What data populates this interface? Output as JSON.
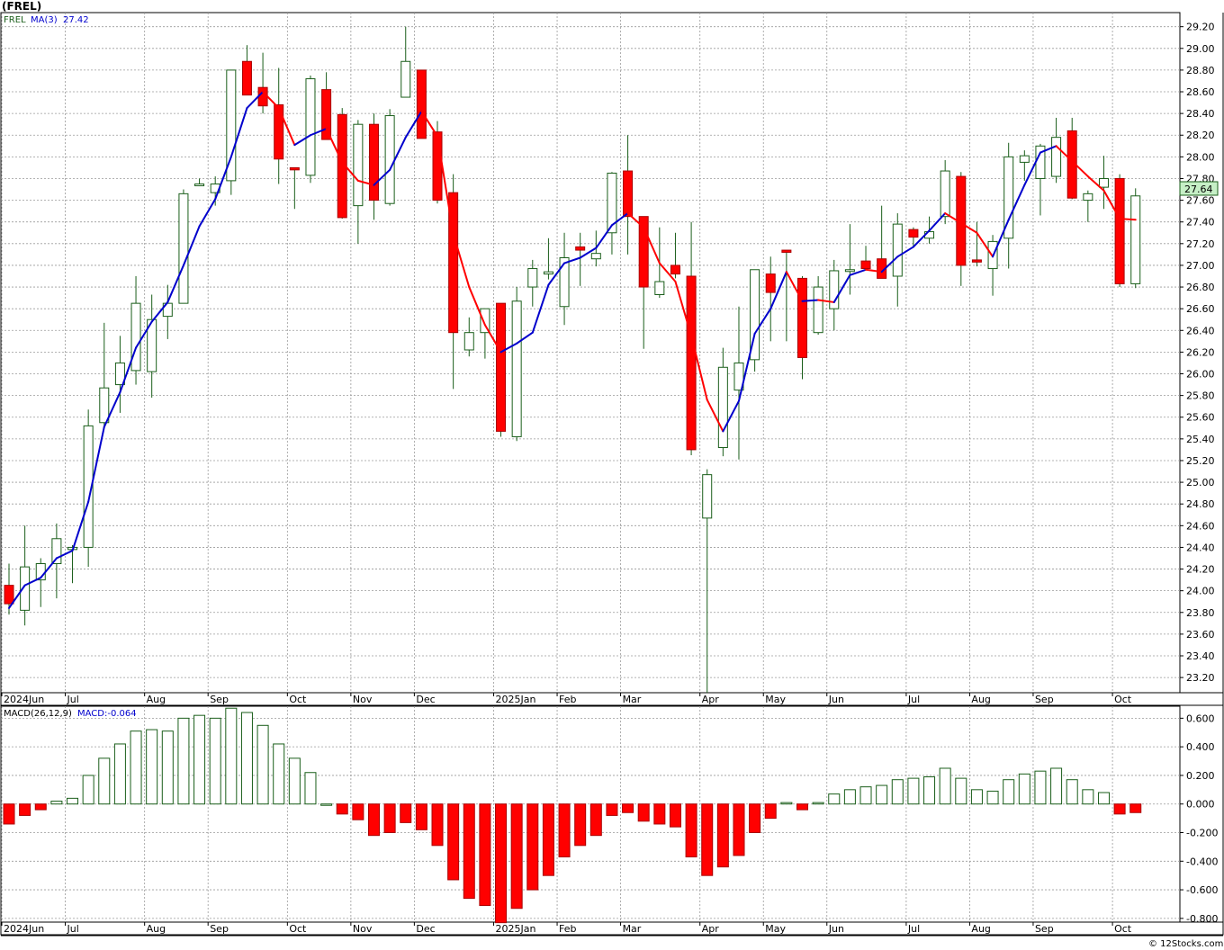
{
  "header": {
    "symbol": "(FREL)",
    "legend_symbol": "FREL",
    "ma_label": "MA(3)",
    "ma_value": "27.42",
    "last_price_badge": "27.64",
    "watermark": "© 12Stocks.com"
  },
  "colors": {
    "up": "#1a5e1a",
    "down": "#ff0000",
    "ma_up": "#0000cc",
    "ma_down": "#ff0000",
    "grid": "#9a9a9a",
    "badge_bg": "#c6efc6",
    "ma_label": "#0000cc"
  },
  "macd_header": {
    "label": "MACD(26,12,9)",
    "value_label": "MACD:-0.064"
  },
  "chart_data": [
    {
      "type": "candlestick",
      "title": "(FREL)",
      "interval": "weekly",
      "x_labels": [
        {
          "week": 0,
          "text": "2024Jun"
        },
        {
          "week": 4,
          "text": "Jul"
        },
        {
          "week": 9,
          "text": "Aug"
        },
        {
          "week": 13,
          "text": "Sep"
        },
        {
          "week": 18,
          "text": "Oct"
        },
        {
          "week": 22,
          "text": "Nov"
        },
        {
          "week": 26,
          "text": "Dec"
        },
        {
          "week": 31,
          "text": "2025Jan"
        },
        {
          "week": 35,
          "text": "Feb"
        },
        {
          "week": 39,
          "text": "Mar"
        },
        {
          "week": 44,
          "text": "Apr"
        },
        {
          "week": 48,
          "text": "May"
        },
        {
          "week": 52,
          "text": "Jun"
        },
        {
          "week": 57,
          "text": "Jul"
        },
        {
          "week": 61,
          "text": "Aug"
        },
        {
          "week": 65,
          "text": "Sep"
        },
        {
          "week": 70,
          "text": "Oct"
        }
      ],
      "y_ticks": [
        "29.20",
        "29.00",
        "28.80",
        "28.60",
        "28.40",
        "28.20",
        "28.00",
        "27.80",
        "27.60",
        "27.40",
        "27.20",
        "27.00",
        "26.80",
        "26.60",
        "26.40",
        "26.20",
        "26.00",
        "25.80",
        "25.60",
        "25.40",
        "25.20",
        "25.00",
        "24.80",
        "24.60",
        "24.40",
        "24.20",
        "24.00",
        "23.80",
        "23.60",
        "23.40",
        "23.20"
      ],
      "ylim": [
        23.06,
        29.33
      ],
      "candles": [
        {
          "o": 24.05,
          "h": 24.25,
          "l": 23.78,
          "c": 23.88
        },
        {
          "o": 23.82,
          "h": 24.6,
          "l": 23.68,
          "c": 24.22
        },
        {
          "o": 24.1,
          "h": 24.3,
          "l": 23.85,
          "c": 24.25
        },
        {
          "o": 24.25,
          "h": 24.62,
          "l": 23.93,
          "c": 24.48
        },
        {
          "o": 24.38,
          "h": 24.42,
          "l": 24.07,
          "c": 24.4
        },
        {
          "o": 24.4,
          "h": 25.67,
          "l": 24.22,
          "c": 25.52
        },
        {
          "o": 25.55,
          "h": 26.47,
          "l": 25.5,
          "c": 25.87
        },
        {
          "o": 25.9,
          "h": 26.35,
          "l": 25.64,
          "c": 26.1
        },
        {
          "o": 26.03,
          "h": 26.9,
          "l": 25.9,
          "c": 26.65
        },
        {
          "o": 26.02,
          "h": 26.73,
          "l": 25.78,
          "c": 26.5
        },
        {
          "o": 26.53,
          "h": 26.82,
          "l": 26.32,
          "c": 26.65
        },
        {
          "o": 26.65,
          "h": 27.7,
          "l": 26.65,
          "c": 27.66
        },
        {
          "o": 27.75,
          "h": 27.8,
          "l": 27.73,
          "c": 27.75
        },
        {
          "o": 27.67,
          "h": 27.82,
          "l": 27.55,
          "c": 27.75
        },
        {
          "o": 27.78,
          "h": 28.8,
          "l": 27.65,
          "c": 28.8
        },
        {
          "o": 28.88,
          "h": 29.03,
          "l": 28.58,
          "c": 28.57
        },
        {
          "o": 28.64,
          "h": 28.96,
          "l": 28.4,
          "c": 28.47
        },
        {
          "o": 28.48,
          "h": 28.82,
          "l": 27.75,
          "c": 27.98
        },
        {
          "o": 27.9,
          "h": 27.9,
          "l": 27.52,
          "c": 27.88
        },
        {
          "o": 27.83,
          "h": 28.75,
          "l": 27.76,
          "c": 28.72
        },
        {
          "o": 28.62,
          "h": 28.78,
          "l": 28.17,
          "c": 28.16
        },
        {
          "o": 28.39,
          "h": 28.45,
          "l": 27.43,
          "c": 27.44
        },
        {
          "o": 27.55,
          "h": 28.34,
          "l": 27.2,
          "c": 28.3
        },
        {
          "o": 28.3,
          "h": 28.4,
          "l": 27.42,
          "c": 27.6
        },
        {
          "o": 27.57,
          "h": 28.44,
          "l": 27.55,
          "c": 28.38
        },
        {
          "o": 28.55,
          "h": 29.2,
          "l": 28.55,
          "c": 28.88
        },
        {
          "o": 28.8,
          "h": 28.8,
          "l": 28.17,
          "c": 28.17
        },
        {
          "o": 28.23,
          "h": 28.33,
          "l": 27.57,
          "c": 27.6
        },
        {
          "o": 27.67,
          "h": 27.84,
          "l": 25.86,
          "c": 26.38
        },
        {
          "o": 26.22,
          "h": 26.52,
          "l": 26.16,
          "c": 26.38
        },
        {
          "o": 26.38,
          "h": 26.55,
          "l": 26.14,
          "c": 26.6
        },
        {
          "o": 26.65,
          "h": 26.65,
          "l": 25.42,
          "c": 25.47
        },
        {
          "o": 25.42,
          "h": 26.8,
          "l": 25.38,
          "c": 26.67
        },
        {
          "o": 26.8,
          "h": 27.05,
          "l": 26.62,
          "c": 26.97
        },
        {
          "o": 26.92,
          "h": 27.25,
          "l": 26.87,
          "c": 26.94
        },
        {
          "o": 26.62,
          "h": 27.3,
          "l": 26.45,
          "c": 27.07
        },
        {
          "o": 27.17,
          "h": 27.3,
          "l": 26.81,
          "c": 27.14
        },
        {
          "o": 27.06,
          "h": 27.32,
          "l": 26.99,
          "c": 27.11
        },
        {
          "o": 27.3,
          "h": 27.86,
          "l": 27.1,
          "c": 27.85
        },
        {
          "o": 27.87,
          "h": 28.2,
          "l": 27.1,
          "c": 27.45
        },
        {
          "o": 27.45,
          "h": 27.45,
          "l": 26.23,
          "c": 26.8
        },
        {
          "o": 26.73,
          "h": 27.35,
          "l": 26.7,
          "c": 26.85
        },
        {
          "o": 27.0,
          "h": 27.3,
          "l": 26.88,
          "c": 26.92
        },
        {
          "o": 26.9,
          "h": 27.4,
          "l": 25.25,
          "c": 25.3
        },
        {
          "o": 24.67,
          "h": 25.12,
          "l": 23.06,
          "c": 25.07
        },
        {
          "o": 25.32,
          "h": 26.24,
          "l": 25.24,
          "c": 26.06
        },
        {
          "o": 25.85,
          "h": 26.62,
          "l": 25.21,
          "c": 26.1
        },
        {
          "o": 26.13,
          "h": 26.95,
          "l": 26.02,
          "c": 26.96
        },
        {
          "o": 26.92,
          "h": 27.08,
          "l": 26.3,
          "c": 26.75
        },
        {
          "o": 27.14,
          "h": 27.14,
          "l": 26.3,
          "c": 27.12
        },
        {
          "o": 26.88,
          "h": 26.9,
          "l": 25.95,
          "c": 26.15
        },
        {
          "o": 26.38,
          "h": 26.9,
          "l": 26.36,
          "c": 26.8
        },
        {
          "o": 26.6,
          "h": 27.05,
          "l": 26.4,
          "c": 26.95
        },
        {
          "o": 26.96,
          "h": 27.38,
          "l": 26.73,
          "c": 26.96
        },
        {
          "o": 27.04,
          "h": 27.18,
          "l": 26.98,
          "c": 26.97
        },
        {
          "o": 27.06,
          "h": 27.55,
          "l": 26.9,
          "c": 26.88
        },
        {
          "o": 26.9,
          "h": 27.48,
          "l": 26.62,
          "c": 27.38
        },
        {
          "o": 27.33,
          "h": 27.35,
          "l": 27.17,
          "c": 27.26
        },
        {
          "o": 27.25,
          "h": 27.45,
          "l": 27.2,
          "c": 27.31
        },
        {
          "o": 27.45,
          "h": 27.97,
          "l": 27.38,
          "c": 27.87
        },
        {
          "o": 27.82,
          "h": 27.86,
          "l": 26.81,
          "c": 27.0
        },
        {
          "o": 27.05,
          "h": 27.4,
          "l": 26.99,
          "c": 27.03
        },
        {
          "o": 26.97,
          "h": 27.28,
          "l": 26.72,
          "c": 27.22
        },
        {
          "o": 27.25,
          "h": 28.13,
          "l": 26.97,
          "c": 28.0
        },
        {
          "o": 27.95,
          "h": 28.06,
          "l": 27.78,
          "c": 28.01
        },
        {
          "o": 27.8,
          "h": 28.12,
          "l": 27.46,
          "c": 28.1
        },
        {
          "o": 27.82,
          "h": 28.36,
          "l": 27.76,
          "c": 28.18
        },
        {
          "o": 28.24,
          "h": 28.36,
          "l": 27.61,
          "c": 27.62
        },
        {
          "o": 27.6,
          "h": 27.69,
          "l": 27.4,
          "c": 27.66
        },
        {
          "o": 27.72,
          "h": 28.01,
          "l": 27.52,
          "c": 27.8
        },
        {
          "o": 27.8,
          "h": 27.84,
          "l": 26.8,
          "c": 26.83
        },
        {
          "o": 26.83,
          "h": 27.71,
          "l": 26.79,
          "c": 27.64
        }
      ],
      "ma": {
        "label": "MA(3)",
        "period": 3,
        "last_value": 27.42,
        "values": [
          23.84,
          24.05,
          24.12,
          24.3,
          24.37,
          24.82,
          25.51,
          25.83,
          26.24,
          26.48,
          26.66,
          27.0,
          27.36,
          27.61,
          28.0,
          28.45,
          28.6,
          28.45,
          28.11,
          28.2,
          28.26,
          27.95,
          27.78,
          27.74,
          27.88,
          28.18,
          28.42,
          28.19,
          27.29,
          26.8,
          26.45,
          26.2,
          26.28,
          26.38,
          26.82,
          27.02,
          27.07,
          27.16,
          27.37,
          27.48,
          27.35,
          27.02,
          26.85,
          26.35,
          25.76,
          25.47,
          25.75,
          26.37,
          26.6,
          26.94,
          26.67,
          26.68,
          26.66,
          26.91,
          26.96,
          26.94,
          27.08,
          27.17,
          27.32,
          27.48,
          27.39,
          27.3,
          27.08,
          27.42,
          27.74,
          28.04,
          28.1,
          27.96,
          27.82,
          27.69,
          27.43,
          27.42
        ]
      }
    },
    {
      "type": "bar",
      "title": "MACD(26,12,9)",
      "current_value": -0.064,
      "y_ticks": [
        "0.600",
        "0.400",
        "0.200",
        "0.000",
        "-0.200",
        "-0.400",
        "-0.600",
        "-0.800"
      ],
      "ylim": [
        -0.826,
        0.684
      ],
      "x_labels": [
        {
          "week": 0,
          "text": "2024Jun"
        },
        {
          "week": 4,
          "text": "Jul"
        },
        {
          "week": 9,
          "text": "Aug"
        },
        {
          "week": 13,
          "text": "Sep"
        },
        {
          "week": 18,
          "text": "Oct"
        },
        {
          "week": 22,
          "text": "Nov"
        },
        {
          "week": 26,
          "text": "Dec"
        },
        {
          "week": 31,
          "text": "2025Jan"
        },
        {
          "week": 35,
          "text": "Feb"
        },
        {
          "week": 39,
          "text": "Mar"
        },
        {
          "week": 44,
          "text": "Apr"
        },
        {
          "week": 48,
          "text": "May"
        },
        {
          "week": 52,
          "text": "Jun"
        },
        {
          "week": 57,
          "text": "Jul"
        },
        {
          "week": 61,
          "text": "Aug"
        },
        {
          "week": 65,
          "text": "Sep"
        },
        {
          "week": 70,
          "text": "Oct"
        }
      ],
      "values": [
        -0.14,
        -0.08,
        -0.04,
        0.02,
        0.04,
        0.2,
        0.32,
        0.42,
        0.51,
        0.52,
        0.51,
        0.6,
        0.62,
        0.6,
        0.67,
        0.64,
        0.55,
        0.42,
        0.32,
        0.22,
        0,
        -0.07,
        -0.11,
        -0.22,
        -0.2,
        -0.13,
        -0.18,
        -0.29,
        -0.53,
        -0.66,
        -0.71,
        -0.83,
        -0.73,
        -0.6,
        -0.5,
        -0.37,
        -0.29,
        -0.22,
        -0.08,
        -0.06,
        -0.12,
        -0.14,
        -0.16,
        -0.37,
        -0.5,
        -0.44,
        -0.36,
        -0.2,
        -0.1,
        0.01,
        -0.04,
        0.01,
        0.07,
        0.1,
        0.12,
        0.13,
        0.17,
        0.18,
        0.19,
        0.25,
        0.18,
        0.1,
        0.09,
        0.17,
        0.21,
        0.23,
        0.25,
        0.17,
        0.1,
        0.08,
        -0.07,
        -0.06
      ]
    }
  ]
}
